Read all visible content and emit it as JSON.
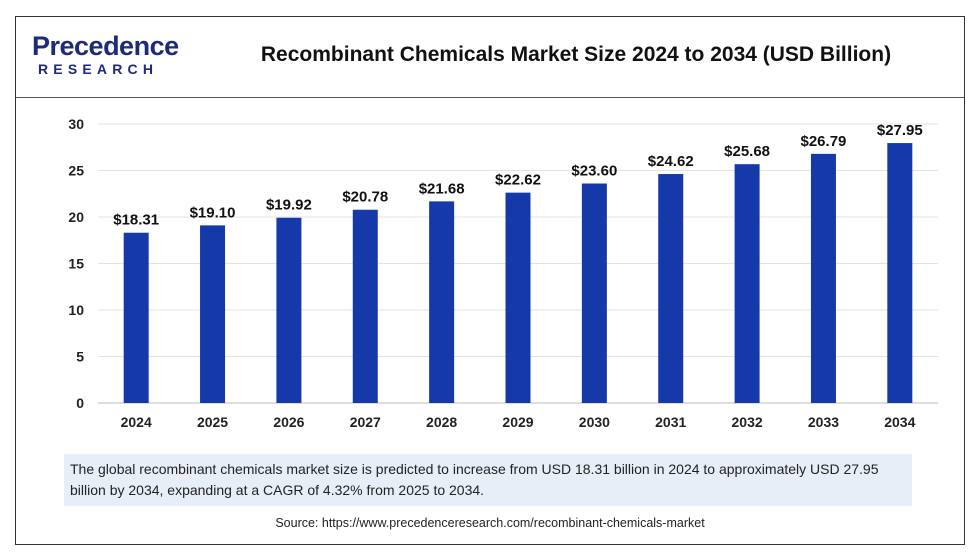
{
  "brand": {
    "logo_main": "Precedence",
    "logo_sub": "RESEARCH"
  },
  "chart_data": {
    "type": "bar",
    "title": "Recombinant Chemicals Market Size 2024 to 2034 (USD Billion)",
    "xlabel": "",
    "ylabel": "",
    "categories": [
      "2024",
      "2025",
      "2026",
      "2027",
      "2028",
      "2029",
      "2030",
      "2031",
      "2032",
      "2033",
      "2034"
    ],
    "values": [
      18.31,
      19.1,
      19.92,
      20.78,
      21.68,
      22.62,
      23.6,
      24.62,
      25.68,
      26.79,
      27.95
    ],
    "data_labels": [
      "$18.31",
      "$19.10",
      "$19.92",
      "$20.78",
      "$21.68",
      "$22.62",
      "$23.60",
      "$24.62",
      "$25.68",
      "$26.79",
      "$27.95"
    ],
    "ylim": [
      0,
      30
    ],
    "yticks": [
      0,
      5,
      10,
      15,
      20,
      25,
      30
    ],
    "grid": "horizontal",
    "bar_color": "#1539a8"
  },
  "caption": "The global recombinant chemicals market size is predicted to increase from USD 18.31 billion in 2024 to approximately USD 27.95 billion by 2034, expanding at a CAGR of 4.32% from 2025 to 2034.",
  "source": "Source: https://www.precedenceresearch.com/recombinant-chemicals-market"
}
